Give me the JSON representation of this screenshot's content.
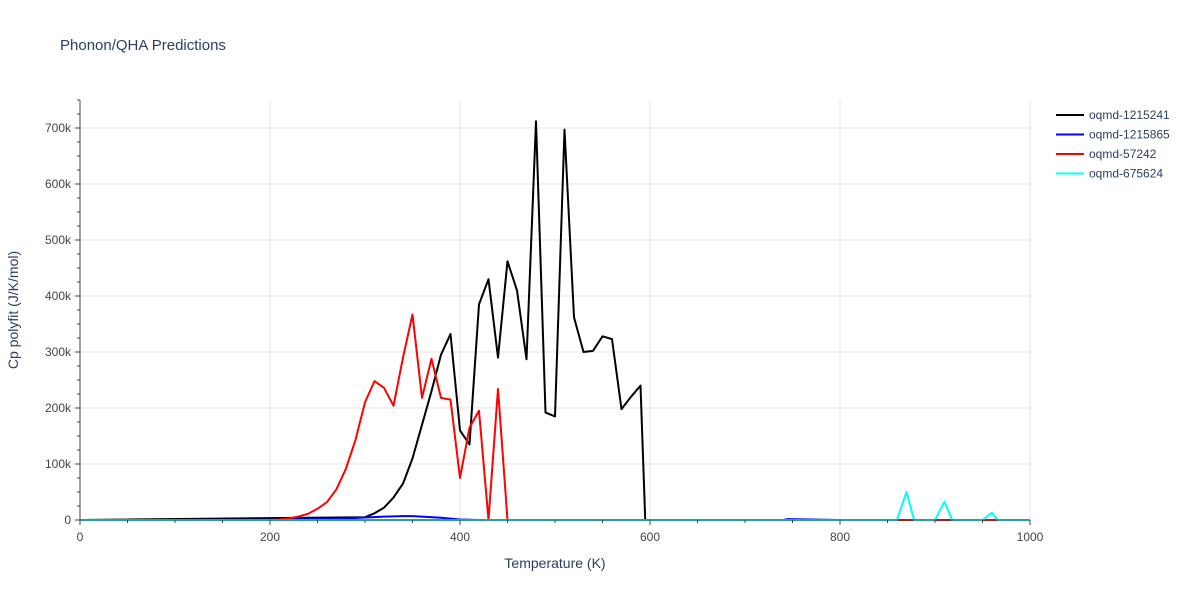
{
  "chart_data": {
    "type": "line",
    "title": "Phonon/QHA Predictions",
    "xlabel": "Temperature (K)",
    "ylabel": "Cp polyfit (J/K/mol)",
    "xlim": [
      0,
      1000
    ],
    "ylim": [
      0,
      750000
    ],
    "x_ticks": [
      0,
      200,
      400,
      600,
      800,
      1000
    ],
    "x_tick_labels": [
      "0",
      "200",
      "400",
      "600",
      "800",
      "1000"
    ],
    "y_ticks": [
      0,
      100000,
      200000,
      300000,
      400000,
      500000,
      600000,
      700000
    ],
    "y_tick_labels": [
      "0",
      "100k",
      "200k",
      "300k",
      "400k",
      "500k",
      "600k",
      "700k"
    ],
    "grid": true,
    "legend_position": "top-right",
    "series": [
      {
        "name": "oqmd-1215241",
        "color": "#000000",
        "x": [
          0,
          300,
          310,
          320,
          330,
          340,
          350,
          360,
          370,
          380,
          390,
          400,
          410,
          420,
          430,
          440,
          450,
          460,
          470,
          480,
          490,
          500,
          510,
          520,
          530,
          540,
          550,
          560,
          570,
          580,
          590,
          595,
          600,
          1000
        ],
        "y": [
          0,
          5000,
          12000,
          22000,
          40000,
          65000,
          110000,
          170000,
          230000,
          295000,
          332000,
          160000,
          135000,
          385000,
          430000,
          290000,
          462000,
          410000,
          287000,
          712000,
          192000,
          185000,
          697000,
          362000,
          300000,
          302000,
          328000,
          323000,
          198000,
          220000,
          240000,
          0,
          0,
          0
        ]
      },
      {
        "name": "oqmd-1215865",
        "color": "#0000ff",
        "x": [
          0,
          100,
          200,
          250,
          280,
          300,
          320,
          340,
          350,
          360,
          380,
          400,
          420,
          740,
          745,
          800,
          1000
        ],
        "y": [
          0,
          0,
          500,
          1500,
          3000,
          4500,
          6000,
          7000,
          7000,
          6000,
          4000,
          1000,
          0,
          0,
          1500,
          0,
          0
        ]
      },
      {
        "name": "oqmd-57242",
        "color": "#ff0000",
        "x": [
          0,
          200,
          210,
          220,
          230,
          240,
          250,
          260,
          270,
          280,
          290,
          300,
          310,
          320,
          330,
          340,
          350,
          360,
          370,
          380,
          390,
          400,
          410,
          420,
          430,
          440,
          450,
          460,
          950,
          990
        ],
        "y": [
          0,
          0,
          1000,
          3000,
          6000,
          11000,
          20000,
          32000,
          55000,
          92000,
          143000,
          210000,
          248000,
          236000,
          204000,
          290000,
          367000,
          218000,
          288000,
          218000,
          215000,
          75000,
          165000,
          195000,
          0,
          234000,
          0,
          0,
          0,
          0
        ]
      },
      {
        "name": "oqmd-675624",
        "color": "#00ffff",
        "x": [
          0,
          860,
          870,
          878,
          900,
          910,
          918,
          950,
          960,
          966,
          1000
        ],
        "y": [
          0,
          0,
          50000,
          0,
          0,
          33000,
          0,
          0,
          13000,
          0,
          0
        ]
      }
    ]
  }
}
